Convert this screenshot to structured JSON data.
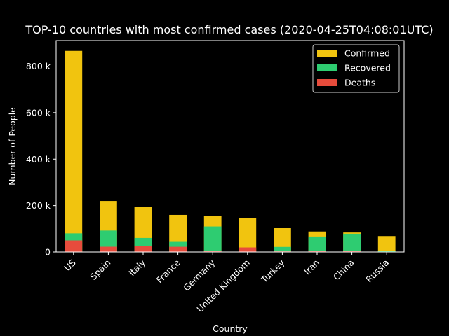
{
  "chart_data": {
    "type": "bar",
    "stacked": true,
    "title": "TOP-10 countries with most confirmed cases (2020-04-25T04:08:01UTC)",
    "xlabel": "Country",
    "ylabel": "Number of People",
    "categories": [
      "US",
      "Spain",
      "Italy",
      "France",
      "Germany",
      "United Kingdom",
      "Turkey",
      "Iran",
      "China",
      "Russia"
    ],
    "series": [
      {
        "name": "Confirmed",
        "color": "#f1c40f",
        "values": [
          865585,
          219764,
          192994,
          159828,
          154999,
          144640,
          104912,
          88194,
          83899,
          68622
        ]
      },
      {
        "name": "Recovered",
        "color": "#2ecc71",
        "values": [
          80203,
          92355,
          60498,
          43493,
          109800,
          0,
          21737,
          66599,
          78694,
          5568
        ]
      },
      {
        "name": "Deaths",
        "color": "#e74c3c",
        "values": [
          49724,
          22524,
          25969,
          22245,
          5760,
          19506,
          2600,
          5574,
          4636,
          615
        ]
      }
    ],
    "ylim": [
      0,
      910000
    ],
    "yticks": [
      0,
      200000,
      400000,
      600000,
      800000
    ],
    "ytick_labels": [
      "0",
      "200 k",
      "400 k",
      "600 k",
      "800 k"
    ],
    "legend_position": "top-right",
    "grid": false
  }
}
